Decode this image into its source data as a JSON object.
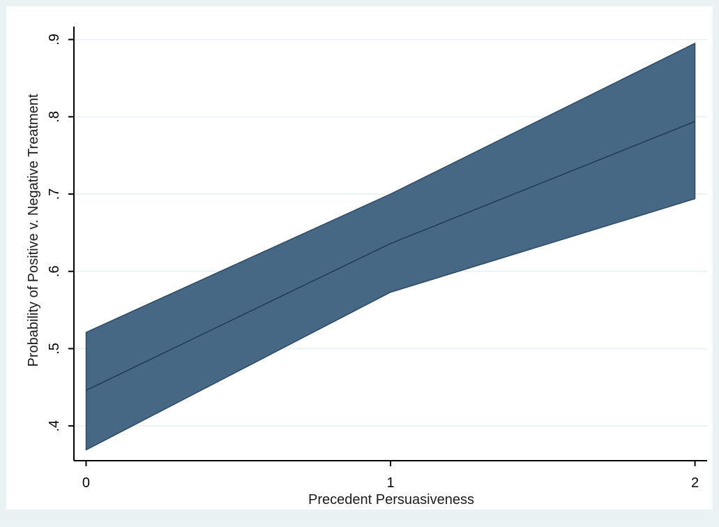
{
  "chart_data": {
    "type": "area",
    "title": "",
    "xlabel": "Precedent Persuasiveness",
    "ylabel": "Probability of Positive v. Negative Treatment",
    "x": [
      0,
      1,
      2
    ],
    "x_ticks": [
      {
        "value": 0,
        "label": "0"
      },
      {
        "value": 1,
        "label": "1"
      },
      {
        "value": 2,
        "label": "2"
      }
    ],
    "y_ticks": [
      {
        "value": 0.4,
        "label": ".4"
      },
      {
        "value": 0.5,
        "label": ".5"
      },
      {
        "value": 0.6,
        "label": ".6"
      },
      {
        "value": 0.7,
        "label": ".7"
      },
      {
        "value": 0.8,
        "label": ".8"
      },
      {
        "value": 0.9,
        "label": ".9"
      }
    ],
    "xlim": [
      -0.04,
      2.04
    ],
    "ylim": [
      0.355,
      0.915
    ],
    "grid": true,
    "legend": "none",
    "series": [
      {
        "kind": "line",
        "y": [
          0.446,
          0.636,
          0.794
        ]
      },
      {
        "kind": "band",
        "lower": [
          0.369,
          0.573,
          0.694
        ],
        "upper": [
          0.521,
          0.7,
          0.895
        ]
      }
    ],
    "colors": {
      "band_fill": "#466885",
      "band_edge": "#2b4a66",
      "line": "#1f3b57",
      "plot_background": "#ffffff",
      "outer_background": "#eaf2f3",
      "grid": "#e6eff1",
      "axis": "#000000"
    }
  }
}
